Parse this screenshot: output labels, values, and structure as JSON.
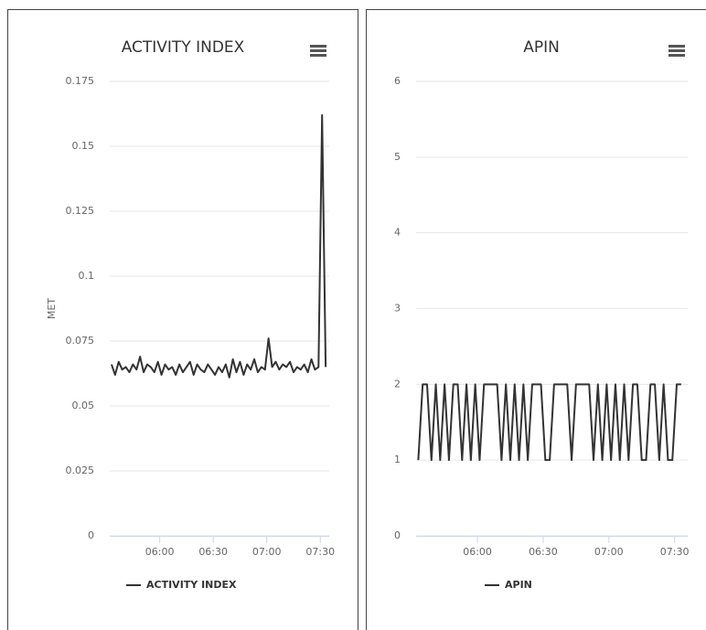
{
  "chart_data": [
    {
      "type": "line",
      "title": "ACTIVITY INDEX",
      "y_label": "MET",
      "x": [
        "05:33",
        "05:35",
        "05:37",
        "05:39",
        "05:41",
        "05:43",
        "05:45",
        "05:47",
        "05:49",
        "05:51",
        "05:53",
        "05:55",
        "05:57",
        "05:59",
        "06:01",
        "06:03",
        "06:05",
        "06:07",
        "06:09",
        "06:11",
        "06:13",
        "06:15",
        "06:17",
        "06:19",
        "06:21",
        "06:23",
        "06:25",
        "06:27",
        "06:29",
        "06:31",
        "06:33",
        "06:35",
        "06:37",
        "06:39",
        "06:41",
        "06:43",
        "06:45",
        "06:47",
        "06:49",
        "06:51",
        "06:53",
        "06:55",
        "06:57",
        "06:59",
        "07:01",
        "07:03",
        "07:05",
        "07:07",
        "07:09",
        "07:11",
        "07:13",
        "07:15",
        "07:17",
        "07:19",
        "07:21",
        "07:23",
        "07:25",
        "07:27",
        "07:29",
        "07:31",
        "07:33"
      ],
      "series": [
        {
          "name": "ACTIVITY INDEX",
          "color": "#333333",
          "values": [
            0.066,
            0.062,
            0.067,
            0.064,
            0.065,
            0.063,
            0.066,
            0.064,
            0.069,
            0.063,
            0.066,
            0.065,
            0.063,
            0.067,
            0.062,
            0.066,
            0.064,
            0.065,
            0.062,
            0.066,
            0.063,
            0.065,
            0.067,
            0.062,
            0.066,
            0.064,
            0.063,
            0.066,
            0.064,
            0.062,
            0.065,
            0.063,
            0.066,
            0.061,
            0.068,
            0.063,
            0.067,
            0.062,
            0.066,
            0.064,
            0.068,
            0.063,
            0.065,
            0.064,
            0.076,
            0.065,
            0.067,
            0.064,
            0.066,
            0.065,
            0.067,
            0.063,
            0.065,
            0.064,
            0.066,
            0.063,
            0.068,
            0.064,
            0.065,
            0.162,
            0.065
          ]
        }
      ],
      "xlim": [
        "05:32",
        "07:35"
      ],
      "xticks": [
        "06:00",
        "06:30",
        "07:00",
        "07:30"
      ],
      "ylim": [
        0,
        0.175
      ],
      "yticks": [
        0,
        0.025,
        0.05,
        0.075,
        0.1,
        0.125,
        0.15,
        0.175
      ],
      "grid": true
    },
    {
      "type": "line",
      "title": "APIN",
      "x": [
        "05:33",
        "05:35",
        "05:37",
        "05:39",
        "05:41",
        "05:43",
        "05:45",
        "05:47",
        "05:49",
        "05:51",
        "05:53",
        "05:55",
        "05:57",
        "05:59",
        "06:01",
        "06:03",
        "06:05",
        "06:07",
        "06:09",
        "06:11",
        "06:13",
        "06:15",
        "06:17",
        "06:19",
        "06:21",
        "06:23",
        "06:25",
        "06:27",
        "06:29",
        "06:31",
        "06:33",
        "06:35",
        "06:37",
        "06:39",
        "06:41",
        "06:43",
        "06:45",
        "06:47",
        "06:49",
        "06:51",
        "06:53",
        "06:55",
        "06:57",
        "06:59",
        "07:01",
        "07:03",
        "07:05",
        "07:07",
        "07:09",
        "07:11",
        "07:13",
        "07:15",
        "07:17",
        "07:19",
        "07:21",
        "07:23",
        "07:25",
        "07:27",
        "07:29",
        "07:31",
        "07:33"
      ],
      "series": [
        {
          "name": "APIN",
          "color": "#333333",
          "values": [
            1,
            2,
            2,
            1,
            2,
            1,
            2,
            1,
            2,
            2,
            1,
            2,
            1,
            2,
            1,
            2,
            2,
            2,
            2,
            1,
            2,
            1,
            2,
            1,
            2,
            1,
            2,
            2,
            2,
            1,
            1,
            2,
            2,
            2,
            2,
            1,
            2,
            2,
            2,
            2,
            1,
            2,
            1,
            2,
            1,
            2,
            1,
            2,
            1,
            2,
            2,
            1,
            1,
            2,
            2,
            1,
            2,
            1,
            1,
            2,
            2
          ]
        }
      ],
      "xlim": [
        "05:32",
        "07:36"
      ],
      "xticks": [
        "06:00",
        "06:30",
        "07:00",
        "07:30"
      ],
      "ylim": [
        0,
        6
      ],
      "yticks": [
        0,
        1,
        2,
        3,
        4,
        5,
        6
      ],
      "grid": true
    }
  ]
}
